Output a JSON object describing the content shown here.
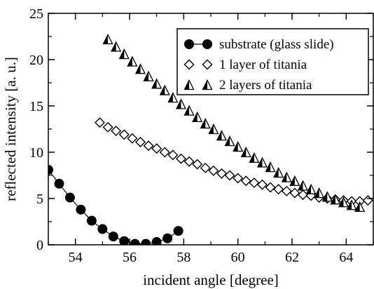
{
  "chart_data": {
    "type": "scatter",
    "xlabel": "incident angle [degree]",
    "ylabel": "reflected intensity [a. u.]",
    "xlim": [
      53,
      65
    ],
    "ylim": [
      0,
      25
    ],
    "x_ticks": [
      "54",
      "56",
      "58",
      "60",
      "62",
      "64"
    ],
    "y_ticks": [
      "0",
      "5",
      "10",
      "15",
      "20",
      "25"
    ],
    "grid": false,
    "legend_position": "top-right",
    "series": [
      {
        "name": "substrate (glass slide)",
        "marker": "filled-circle",
        "line": true,
        "color": "#000000",
        "x": [
          53.0,
          53.4,
          53.8,
          54.2,
          54.6,
          55.0,
          55.4,
          55.8,
          56.2,
          56.6,
          57.0,
          57.4,
          57.8
        ],
        "y": [
          8.1,
          6.6,
          5.1,
          3.8,
          2.6,
          1.7,
          0.9,
          0.4,
          0.1,
          0.1,
          0.3,
          0.7,
          1.5
        ]
      },
      {
        "name": "1 layer of titania",
        "marker": "open-diamond",
        "line": false,
        "color": "#000000",
        "x": [
          54.9,
          55.2,
          55.5,
          55.8,
          56.1,
          56.4,
          56.7,
          57.0,
          57.3,
          57.6,
          57.9,
          58.2,
          58.5,
          58.8,
          59.1,
          59.4,
          59.7,
          60.0,
          60.3,
          60.6,
          60.9,
          61.2,
          61.5,
          61.8,
          62.1,
          62.4,
          62.7,
          63.0,
          63.3,
          63.6,
          63.9,
          64.2,
          64.5,
          64.8
        ],
        "y": [
          13.2,
          12.7,
          12.3,
          11.9,
          11.5,
          11.1,
          10.7,
          10.4,
          10.0,
          9.7,
          9.3,
          9.0,
          8.7,
          8.3,
          8.0,
          7.7,
          7.5,
          7.2,
          6.9,
          6.7,
          6.5,
          6.2,
          6.0,
          5.8,
          5.6,
          5.4,
          5.3,
          5.1,
          5.0,
          4.9,
          4.8,
          4.7,
          4.7,
          4.8
        ]
      },
      {
        "name": "2 layers of titania",
        "marker": "half-filled-triangle",
        "line": false,
        "color": "#000000",
        "x": [
          55.2,
          55.5,
          55.8,
          56.1,
          56.4,
          56.7,
          57.0,
          57.3,
          57.6,
          57.9,
          58.2,
          58.5,
          58.8,
          59.1,
          59.4,
          59.7,
          60.0,
          60.3,
          60.6,
          60.9,
          61.2,
          61.5,
          61.8,
          62.1,
          62.4,
          62.7,
          63.0,
          63.3,
          63.6,
          63.9,
          64.2,
          64.5
        ],
        "y": [
          22.2,
          21.4,
          20.6,
          19.8,
          19.0,
          18.2,
          17.4,
          16.7,
          15.9,
          15.2,
          14.5,
          13.8,
          13.1,
          12.5,
          11.8,
          11.2,
          10.6,
          10.0,
          9.4,
          8.9,
          8.4,
          7.8,
          7.3,
          6.9,
          6.4,
          6.0,
          5.6,
          5.2,
          4.9,
          4.6,
          4.3,
          4.1
        ]
      }
    ]
  }
}
